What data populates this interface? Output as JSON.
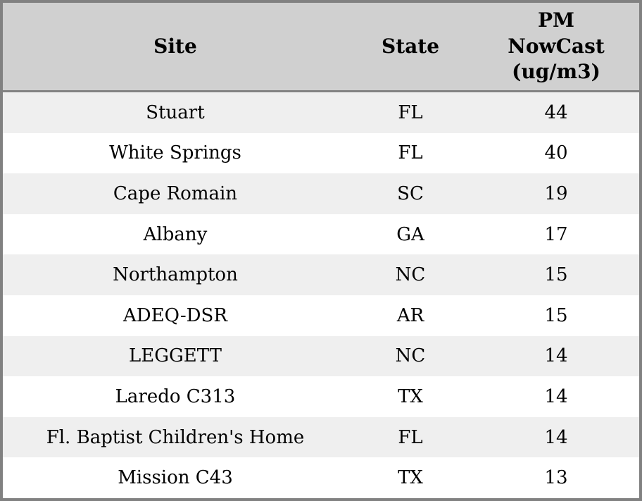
{
  "table": {
    "columns": [
      {
        "id": "site",
        "label": "Site"
      },
      {
        "id": "state",
        "label": "State"
      },
      {
        "id": "pm_nowcast",
        "label": "PM\nNowCast\n(ug/m3)"
      }
    ],
    "rows": [
      {
        "site": "Stuart",
        "state": "FL",
        "pm_nowcast": "44"
      },
      {
        "site": "White Springs",
        "state": "FL",
        "pm_nowcast": "40"
      },
      {
        "site": "Cape Romain",
        "state": "SC",
        "pm_nowcast": "19"
      },
      {
        "site": "Albany",
        "state": "GA",
        "pm_nowcast": "17"
      },
      {
        "site": "Northampton",
        "state": "NC",
        "pm_nowcast": "15"
      },
      {
        "site": "ADEQ-DSR",
        "state": "AR",
        "pm_nowcast": "15"
      },
      {
        "site": "LEGGETT",
        "state": "NC",
        "pm_nowcast": "14"
      },
      {
        "site": "Laredo C313",
        "state": "TX",
        "pm_nowcast": "14"
      },
      {
        "site": "Fl. Baptist Children's Home",
        "state": "FL",
        "pm_nowcast": "14"
      },
      {
        "site": "Mission C43",
        "state": "TX",
        "pm_nowcast": "13"
      }
    ]
  },
  "colors": {
    "header_background": "#d0d0d0",
    "outer_border": "#818181",
    "header_divider": "#828282",
    "row_odd_background": "#efefef",
    "row_even_background": "#ffffff",
    "text": "#000000"
  },
  "chart_data": {
    "type": "table",
    "title": "",
    "columns": [
      "Site",
      "State",
      "PM NowCast (ug/m3)"
    ],
    "rows": [
      [
        "Stuart",
        "FL",
        44
      ],
      [
        "White Springs",
        "FL",
        40
      ],
      [
        "Cape Romain",
        "SC",
        19
      ],
      [
        "Albany",
        "GA",
        17
      ],
      [
        "Northampton",
        "NC",
        15
      ],
      [
        "ADEQ-DSR",
        "AR",
        15
      ],
      [
        "LEGGETT",
        "NC",
        14
      ],
      [
        "Laredo C313",
        "TX",
        14
      ],
      [
        "Fl. Baptist Children's Home",
        "FL",
        14
      ],
      [
        "Mission C43",
        "TX",
        13
      ]
    ],
    "layout_hints": {
      "header_style": "bold serif on gray",
      "row_striping": "odd rows light gray, even rows white",
      "alignment": "all cells center-aligned"
    }
  }
}
